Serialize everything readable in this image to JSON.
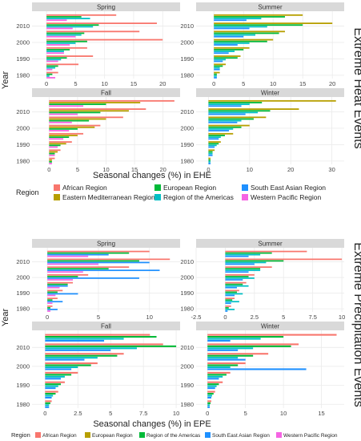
{
  "colors": {
    "african": "#f8766d",
    "eastern_med": "#b79f00",
    "european": "#00ba38",
    "americas": "#00bfc4",
    "south_east_asian": "#1e90ff",
    "western_pacific": "#f564e3",
    "strip": "#d9d9d9",
    "grid": "#ebebeb"
  },
  "groups": {
    "ehe": {
      "title": "Extreme Heat Events",
      "xlabel": "Seasonal changes (%) in EHE",
      "ylabel": "Year"
    },
    "epe": {
      "title": "Extreme Precipitation Events",
      "xlabel": "Seasonal changes (%) in EPE",
      "ylabel": "Year"
    }
  },
  "legends": {
    "ehe": {
      "title": "Region",
      "items": [
        {
          "label": "African Region",
          "color": "#f8766d"
        },
        {
          "label": "Eastern Mediterranean Region",
          "color": "#b79f00"
        },
        {
          "label": "European Region",
          "color": "#00ba38"
        },
        {
          "label": "Region of the Americas",
          "color": "#00bfc4"
        },
        {
          "label": "South East Asian Region",
          "color": "#1e90ff"
        },
        {
          "label": "Western Pacific Region",
          "color": "#f564e3"
        }
      ]
    },
    "epe": {
      "title": "Region",
      "items": [
        {
          "label": "African Region",
          "color": "#f8766d"
        },
        {
          "label": "European Region",
          "color": "#b79f00"
        },
        {
          "label": "Region of the Americas",
          "color": "#00ba38"
        },
        {
          "label": "South East Asian Region",
          "color": "#1e90ff"
        },
        {
          "label": "Western Pacific Region",
          "color": "#f564e3"
        }
      ]
    }
  },
  "chart_data": [
    {
      "id": "ehe_spring",
      "group": "ehe",
      "type": "bar",
      "orientation": "horizontal",
      "title": "Spring",
      "xlim": [
        -2.5,
        23
      ],
      "xticks": [
        0,
        5,
        10,
        15,
        20
      ],
      "ylim": [
        1978,
        2019
      ],
      "yticks": [
        1980,
        1990,
        2000,
        2010
      ],
      "regions": [
        "african",
        "eastern_med",
        "european",
        "americas",
        "south_east_asian",
        "western_pacific"
      ],
      "series": [
        {
          "region": "african",
          "years": [
            1980,
            1985,
            1990,
            1995,
            2000,
            2005,
            2010,
            2015
          ],
          "values": [
            2.0,
            5.5,
            8.0,
            7.0,
            20.0,
            16.0,
            19.0,
            12.0
          ]
        },
        {
          "region": "european",
          "years": [
            1980,
            1985,
            1990,
            1995,
            2000,
            2005,
            2010,
            2015
          ],
          "values": [
            1.0,
            2.0,
            3.5,
            4.0,
            7.0,
            6.5,
            9.0,
            6.0
          ]
        },
        {
          "region": "americas",
          "years": [
            1980,
            1985,
            1990,
            1995,
            2000,
            2005,
            2010,
            2015
          ],
          "values": [
            0.5,
            1.5,
            2.5,
            3.0,
            5.0,
            6.0,
            8.0,
            7.5
          ]
        },
        {
          "region": "western_pacific",
          "years": [
            1980,
            1985,
            1990,
            1995,
            2000,
            2005,
            2010,
            2015
          ],
          "values": [
            1.5,
            1.0,
            2.0,
            3.0,
            4.0,
            5.0,
            4.5,
            3.5
          ]
        }
      ]
    },
    {
      "id": "ehe_summer",
      "group": "ehe",
      "type": "bar",
      "orientation": "horizontal",
      "title": "Summer",
      "xlim": [
        -3,
        22
      ],
      "xticks": [
        0,
        5,
        10,
        15,
        20
      ],
      "ylim": [
        1978,
        2019
      ],
      "yticks": [
        1980,
        1990,
        2000,
        2010
      ],
      "regions": [
        "african",
        "eastern_med",
        "european",
        "americas",
        "south_east_asian",
        "western_pacific"
      ],
      "series": [
        {
          "region": "eastern_med",
          "years": [
            1980,
            1985,
            1990,
            1995,
            2000,
            2005,
            2010,
            2015
          ],
          "values": [
            1.0,
            2.0,
            4.5,
            6.0,
            10.0,
            12.0,
            20.0,
            15.0
          ]
        },
        {
          "region": "european",
          "years": [
            1980,
            1985,
            1990,
            1995,
            2000,
            2005,
            2010,
            2015
          ],
          "values": [
            0.5,
            1.5,
            4.0,
            5.0,
            9.0,
            11.0,
            15.0,
            12.0
          ]
        },
        {
          "region": "americas",
          "years": [
            1980,
            1985,
            1990,
            1995,
            2000,
            2005,
            2010,
            2015
          ],
          "values": [
            0.5,
            1.0,
            2.0,
            3.5,
            6.0,
            7.0,
            9.0,
            8.0
          ]
        },
        {
          "region": "south_east_asian",
          "years": [
            1980,
            1985,
            1990,
            1995,
            2000,
            2005,
            2010,
            2015
          ],
          "values": [
            0.5,
            1.0,
            1.5,
            2.5,
            4.0,
            5.0,
            6.0,
            5.5
          ]
        }
      ]
    },
    {
      "id": "ehe_fall",
      "group": "ehe",
      "type": "bar",
      "orientation": "horizontal",
      "title": "Fall",
      "xlim": [
        -3,
        23
      ],
      "xticks": [
        0,
        5,
        10,
        15,
        20
      ],
      "ylim": [
        1978,
        2019
      ],
      "yticks": [
        1980,
        1990,
        2000,
        2010
      ],
      "regions": [
        "african",
        "eastern_med",
        "european",
        "americas",
        "south_east_asian",
        "western_pacific"
      ],
      "series": [
        {
          "region": "african",
          "years": [
            1980,
            1985,
            1990,
            1995,
            2000,
            2005,
            2010,
            2015
          ],
          "values": [
            1.0,
            2.0,
            4.0,
            6.0,
            9.0,
            13.0,
            17.0,
            22.0
          ]
        },
        {
          "region": "eastern_med",
          "years": [
            1980,
            1985,
            1990,
            1995,
            2000,
            2005,
            2010,
            2015
          ],
          "values": [
            0.5,
            1.5,
            3.0,
            5.0,
            8.0,
            10.0,
            14.0,
            16.0
          ]
        },
        {
          "region": "european",
          "years": [
            1980,
            1985,
            1990,
            1995,
            2000,
            2005,
            2010,
            2015
          ],
          "values": [
            0.5,
            1.0,
            2.0,
            3.5,
            5.0,
            7.0,
            9.0,
            10.0
          ]
        },
        {
          "region": "western_pacific",
          "years": [
            1980,
            1985,
            1990,
            1995,
            2000,
            2005,
            2010,
            2015
          ],
          "values": [
            0.5,
            1.0,
            1.5,
            2.5,
            3.5,
            4.0,
            5.0,
            6.0
          ]
        }
      ]
    },
    {
      "id": "ehe_winter",
      "group": "ehe",
      "type": "bar",
      "orientation": "horizontal",
      "title": "Winter",
      "xlim": [
        -3,
        33
      ],
      "xticks": [
        0,
        10,
        20,
        30
      ],
      "ylim": [
        1978,
        2019
      ],
      "yticks": [
        1980,
        1990,
        2000,
        2010
      ],
      "regions": [
        "african",
        "eastern_med",
        "european",
        "americas",
        "south_east_asian",
        "western_pacific"
      ],
      "series": [
        {
          "region": "eastern_med",
          "years": [
            1980,
            1985,
            1990,
            1995,
            2000,
            2005,
            2010,
            2015
          ],
          "values": [
            0.5,
            1.5,
            3.0,
            6.0,
            10.0,
            14.0,
            22.0,
            31.0
          ]
        },
        {
          "region": "european",
          "years": [
            1980,
            1985,
            1990,
            1995,
            2000,
            2005,
            2010,
            2015
          ],
          "values": [
            0.5,
            1.0,
            2.5,
            4.0,
            8.0,
            11.0,
            15.0,
            13.0
          ]
        },
        {
          "region": "americas",
          "years": [
            1980,
            1985,
            1990,
            1995,
            2000,
            2005,
            2010,
            2015
          ],
          "values": [
            0.5,
            1.0,
            2.0,
            3.0,
            6.0,
            8.0,
            12.0,
            10.0
          ]
        },
        {
          "region": "south_east_asian",
          "years": [
            1980,
            1985,
            1990,
            1995,
            2000,
            2005,
            2010,
            2015
          ],
          "values": [
            0.5,
            1.0,
            1.5,
            2.5,
            5.0,
            7.0,
            9.0,
            8.0
          ]
        }
      ]
    },
    {
      "id": "epe_spring",
      "group": "epe",
      "type": "bar",
      "orientation": "horizontal",
      "title": "Spring",
      "xlim": [
        -1.5,
        13
      ],
      "xticks": [
        0,
        5,
        10
      ],
      "ylim": [
        1978,
        2019
      ],
      "yticks": [
        1980,
        1990,
        2000,
        2010
      ],
      "regions": [
        "african",
        "european",
        "americas",
        "south_east_asian",
        "western_pacific"
      ],
      "series": [
        {
          "region": "african",
          "years": [
            1980,
            1985,
            1990,
            1995,
            2000,
            2005,
            2010,
            2015
          ],
          "values": [
            0.5,
            1.0,
            1.5,
            2.5,
            4.0,
            8.0,
            12.0,
            10.0
          ]
        },
        {
          "region": "european",
          "years": [
            1980,
            1985,
            1990,
            1995,
            2000,
            2005,
            2010,
            2015
          ],
          "values": [
            0.3,
            0.5,
            1.0,
            2.0,
            3.0,
            6.0,
            9.0,
            8.0
          ]
        },
        {
          "region": "south_east_asian",
          "years": [
            1980,
            1985,
            1990,
            1995,
            2000,
            2005,
            2010,
            2015
          ],
          "values": [
            1.0,
            1.5,
            3.0,
            2.0,
            9.0,
            11.0,
            10.0,
            6.0
          ]
        },
        {
          "region": "western_pacific",
          "years": [
            1980,
            1985,
            1990,
            1995,
            2000,
            2005,
            2010,
            2015
          ],
          "values": [
            0.3,
            0.5,
            0.8,
            1.2,
            2.5,
            3.5,
            5.0,
            4.0
          ]
        }
      ]
    },
    {
      "id": "epe_summer",
      "group": "epe",
      "type": "bar",
      "orientation": "horizontal",
      "title": "Summer",
      "xlim": [
        -2.5,
        10.2
      ],
      "xticks": [
        -2.5,
        0.0,
        2.5,
        5.0,
        7.5,
        10.0
      ],
      "ylim": [
        1978,
        2019
      ],
      "yticks": [
        1980,
        1990,
        2000,
        2010
      ],
      "regions": [
        "african",
        "european",
        "americas",
        "south_east_asian",
        "western_pacific"
      ],
      "series": [
        {
          "region": "african",
          "years": [
            1980,
            1985,
            1990,
            1995,
            2000,
            2005,
            2010,
            2015
          ],
          "values": [
            0.5,
            0.8,
            1.2,
            1.8,
            2.5,
            4.0,
            10.0,
            7.0
          ]
        },
        {
          "region": "european",
          "years": [
            1980,
            1985,
            1990,
            1995,
            2000,
            2005,
            2010,
            2015
          ],
          "values": [
            0.3,
            0.6,
            1.0,
            1.5,
            2.0,
            3.0,
            5.0,
            4.0
          ]
        },
        {
          "region": "americas",
          "years": [
            1980,
            1985,
            1990,
            1995,
            2000,
            2005,
            2010,
            2015
          ],
          "values": [
            0.8,
            1.2,
            1.5,
            2.0,
            2.5,
            3.0,
            3.5,
            3.0
          ]
        },
        {
          "region": "south_east_asian",
          "years": [
            1980,
            1985,
            1990,
            1995,
            2000,
            2005,
            2010,
            2015
          ],
          "values": [
            0.2,
            0.5,
            0.8,
            1.0,
            1.5,
            2.0,
            2.5,
            2.0
          ]
        }
      ]
    },
    {
      "id": "epe_fall",
      "group": "epe",
      "type": "bar",
      "orientation": "horizontal",
      "title": "Fall",
      "xlim": [
        -1,
        10.3
      ],
      "xticks": [
        0.0,
        2.5,
        5.0,
        7.5,
        10.0
      ],
      "ylim": [
        1978,
        2019
      ],
      "yticks": [
        1980,
        1990,
        2000,
        2010
      ],
      "regions": [
        "african",
        "european",
        "americas",
        "south_east_asian",
        "western_pacific"
      ],
      "series": [
        {
          "region": "african",
          "years": [
            1980,
            1985,
            1990,
            1995,
            2000,
            2005,
            2010,
            2015
          ],
          "values": [
            0.5,
            1.0,
            1.5,
            2.5,
            4.0,
            6.0,
            9.0,
            8.0
          ]
        },
        {
          "region": "european",
          "years": [
            1980,
            1985,
            1990,
            1995,
            2000,
            2005,
            2010,
            2015
          ],
          "values": [
            0.4,
            0.8,
            1.2,
            2.0,
            3.5,
            5.5,
            10.0,
            8.5
          ]
        },
        {
          "region": "americas",
          "years": [
            1980,
            1985,
            1990,
            1995,
            2000,
            2005,
            2010,
            2015
          ],
          "values": [
            0.3,
            0.6,
            1.0,
            1.5,
            2.5,
            4.0,
            7.0,
            6.0
          ]
        },
        {
          "region": "south_east_asian",
          "years": [
            1980,
            1985,
            1990,
            1995,
            2000,
            2005,
            2010,
            2015
          ],
          "values": [
            0.3,
            0.5,
            0.8,
            1.2,
            2.0,
            3.0,
            5.0,
            4.5
          ]
        }
      ]
    },
    {
      "id": "epe_winter",
      "group": "epe",
      "type": "bar",
      "orientation": "horizontal",
      "title": "Winter",
      "xlim": [
        -1.5,
        18
      ],
      "xticks": [
        0,
        5,
        10,
        15
      ],
      "ylim": [
        1978,
        2019
      ],
      "yticks": [
        1980,
        1990,
        2000,
        2010
      ],
      "regions": [
        "african",
        "european",
        "americas",
        "south_east_asian",
        "western_pacific"
      ],
      "series": [
        {
          "region": "african",
          "years": [
            1980,
            1985,
            1990,
            1995,
            2000,
            2005,
            2010,
            2015
          ],
          "values": [
            0.5,
            1.0,
            2.0,
            3.0,
            5.0,
            8.0,
            12.0,
            17.0
          ]
        },
        {
          "region": "european",
          "years": [
            1980,
            1985,
            1990,
            1995,
            2000,
            2005,
            2010,
            2015
          ],
          "values": [
            0.4,
            0.8,
            1.5,
            2.5,
            4.0,
            6.0,
            11.0,
            10.0
          ]
        },
        {
          "region": "americas",
          "years": [
            1980,
            1985,
            1990,
            1995,
            2000,
            2005,
            2010,
            2015
          ],
          "values": [
            0.3,
            0.6,
            1.2,
            2.0,
            3.0,
            4.0,
            6.0,
            7.0
          ]
        },
        {
          "region": "south_east_asian",
          "years": [
            1980,
            1985,
            1990,
            1995,
            2000,
            2005,
            2010,
            2015
          ],
          "values": [
            0.3,
            0.5,
            1.0,
            1.5,
            13.0,
            5.0,
            4.0,
            3.0
          ]
        }
      ]
    }
  ]
}
